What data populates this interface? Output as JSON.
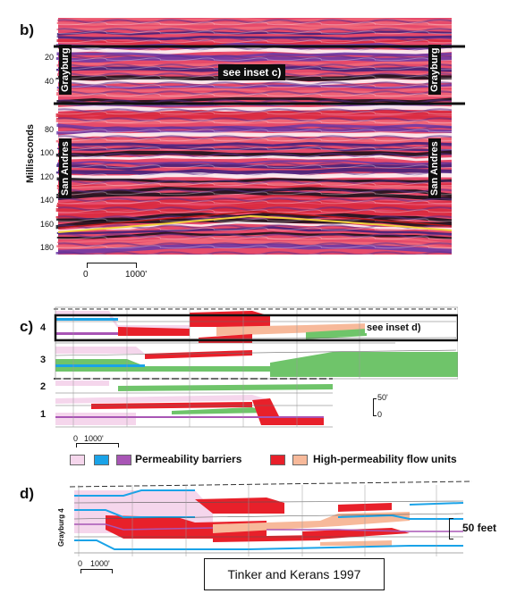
{
  "panel_b": {
    "letter": "b)",
    "top_left_unit": "Grayburg",
    "top_right_unit": "Grayburg",
    "lower_left_unit": "San Andres",
    "lower_right_unit": "San Andres",
    "inset_label": "see inset c)",
    "y_axis_title": "Milliseconds",
    "y_ticks": [
      "20",
      "40",
      "80",
      "100",
      "120",
      "140",
      "160",
      "180"
    ],
    "scale_start": "0",
    "scale_end": "1000'"
  },
  "panel_c": {
    "letter": "c)",
    "layers": [
      "4",
      "3",
      "2",
      "1"
    ],
    "inset_label": "see inset d)",
    "vertical_scale": "50'",
    "vertical_scale_zero": "0",
    "scale_start": "0",
    "scale_end": "1000'"
  },
  "legend": {
    "barriers_label": "Permeability barriers",
    "flow_units_label": "High-permeability flow units",
    "colors": {
      "barrier_pink": "#f5d6ec",
      "barrier_blue": "#1aa3e8",
      "barrier_purple": "#a855b5",
      "flow_red": "#e8202a",
      "flow_peach": "#f7b99a",
      "green": "#6fc46a"
    }
  },
  "panel_d": {
    "letter": "d)",
    "unit_label": "Grayburg 4",
    "vertical_scale": "50 feet",
    "scale_start": "0",
    "scale_end": "1000'"
  },
  "citation": "Tinker and Kerans 1997"
}
